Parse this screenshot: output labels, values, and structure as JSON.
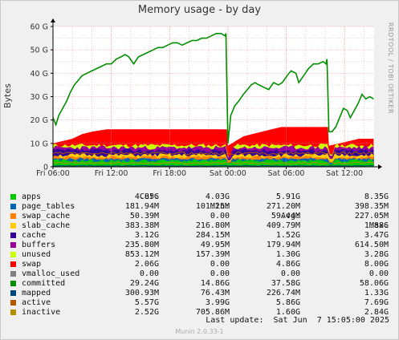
{
  "chart_data": {
    "type": "area",
    "title": "Memory usage - by day",
    "ylabel": "Bytes",
    "side_label": "RRDTOOL / TOBI OETIKER",
    "ylim": [
      0,
      60
    ],
    "y_unit": "G",
    "yticks": [
      "0",
      "10 G",
      "20 G",
      "30 G",
      "40 G",
      "50 G",
      "60 G"
    ],
    "x_ticks": [
      {
        "label": "Fri 06:00",
        "h": 6
      },
      {
        "label": "Fri 12:00",
        "h": 12
      },
      {
        "label": "Fri 18:00",
        "h": 18
      },
      {
        "label": "Sat 00:00",
        "h": 24
      },
      {
        "label": "Sat 06:00",
        "h": 30
      },
      {
        "label": "Sat 12:00",
        "h": 36
      }
    ],
    "x_range_hours": [
      6,
      39.05
    ],
    "committed_series": [
      [
        6.0,
        21
      ],
      [
        6.3,
        18
      ],
      [
        6.6,
        22
      ],
      [
        7.0,
        25
      ],
      [
        7.4,
        28
      ],
      [
        7.8,
        32
      ],
      [
        8.2,
        35
      ],
      [
        8.6,
        37
      ],
      [
        9.0,
        39
      ],
      [
        9.5,
        40
      ],
      [
        10.0,
        41
      ],
      [
        10.5,
        42
      ],
      [
        11.0,
        43
      ],
      [
        11.5,
        44
      ],
      [
        12.0,
        44
      ],
      [
        12.5,
        46
      ],
      [
        13.0,
        47
      ],
      [
        13.4,
        48
      ],
      [
        13.8,
        47
      ],
      [
        14.3,
        44
      ],
      [
        14.8,
        47
      ],
      [
        15.3,
        48
      ],
      [
        15.8,
        49
      ],
      [
        16.3,
        50
      ],
      [
        16.8,
        51
      ],
      [
        17.3,
        51
      ],
      [
        17.8,
        52
      ],
      [
        18.3,
        53
      ],
      [
        18.8,
        53
      ],
      [
        19.3,
        52
      ],
      [
        19.8,
        53
      ],
      [
        20.3,
        54
      ],
      [
        20.8,
        54
      ],
      [
        21.3,
        55
      ],
      [
        21.8,
        55
      ],
      [
        22.3,
        56
      ],
      [
        22.8,
        57
      ],
      [
        23.3,
        57
      ],
      [
        23.7,
        56
      ],
      [
        23.8,
        57
      ],
      [
        24.0,
        10
      ],
      [
        24.3,
        22
      ],
      [
        24.7,
        26
      ],
      [
        25.1,
        28
      ],
      [
        25.6,
        31
      ],
      [
        26.0,
        33
      ],
      [
        26.4,
        35
      ],
      [
        26.8,
        36
      ],
      [
        27.2,
        35
      ],
      [
        27.7,
        34
      ],
      [
        28.2,
        33
      ],
      [
        28.7,
        36
      ],
      [
        29.2,
        35
      ],
      [
        29.6,
        36
      ],
      [
        30.1,
        39
      ],
      [
        30.5,
        41
      ],
      [
        31.0,
        40
      ],
      [
        31.3,
        36
      ],
      [
        31.8,
        39
      ],
      [
        32.3,
        42
      ],
      [
        32.8,
        44
      ],
      [
        33.3,
        44
      ],
      [
        33.8,
        45
      ],
      [
        34.1,
        44
      ],
      [
        34.2,
        46
      ],
      [
        34.4,
        15
      ],
      [
        34.7,
        15
      ],
      [
        35.1,
        17
      ],
      [
        35.5,
        21
      ],
      [
        35.9,
        25
      ],
      [
        36.3,
        24
      ],
      [
        36.6,
        21
      ],
      [
        37.0,
        24
      ],
      [
        37.4,
        27
      ],
      [
        37.8,
        31
      ],
      [
        38.2,
        29
      ],
      [
        38.6,
        30
      ],
      [
        39.0,
        29
      ]
    ],
    "swap_series": [
      [
        6.0,
        10
      ],
      [
        7.0,
        11
      ],
      [
        8.0,
        12
      ],
      [
        9.0,
        14
      ],
      [
        10.0,
        15
      ],
      [
        11.5,
        16
      ],
      [
        13.0,
        16
      ],
      [
        16.0,
        16
      ],
      [
        20.0,
        16
      ],
      [
        22.0,
        16
      ],
      [
        23.9,
        16
      ],
      [
        24.0,
        9
      ],
      [
        24.8,
        11
      ],
      [
        25.6,
        13
      ],
      [
        26.5,
        14
      ],
      [
        27.5,
        15
      ],
      [
        28.5,
        16
      ],
      [
        29.5,
        17
      ],
      [
        31.0,
        17
      ],
      [
        33.0,
        17
      ],
      [
        34.3,
        17
      ],
      [
        34.4,
        9
      ],
      [
        35.5,
        10
      ],
      [
        36.5,
        11
      ],
      [
        37.5,
        12
      ],
      [
        39.0,
        12
      ]
    ],
    "series": [
      {
        "name": "apps",
        "cur": "4.85G",
        "min": "4.03G",
        "avg": "5.91G",
        "max": "8.35G",
        "color": "#00cc00"
      },
      {
        "name": "page_tables",
        "cur": "181.94M",
        "min": "101.25M",
        "avg": "271.20M",
        "max": "398.35M",
        "color": "#0066b3"
      },
      {
        "name": "swap_cache",
        "cur": "50.39M",
        "min": "0.00",
        "avg": "59.44M",
        "max": "227.05M",
        "color": "#ff8000"
      },
      {
        "name": "slab_cache",
        "cur": "383.38M",
        "min": "216.80M",
        "avg": "409.79M",
        "max": "1.88G",
        "color": "#ffcc00"
      },
      {
        "name": "cache",
        "cur": "3.12G",
        "min": "284.15M",
        "avg": "1.52G",
        "max": "3.47G",
        "color": "#330099"
      },
      {
        "name": "buffers",
        "cur": "235.80M",
        "min": "49.95M",
        "avg": "179.94M",
        "max": "614.50M",
        "color": "#990099"
      },
      {
        "name": "unused",
        "cur": "853.12M",
        "min": "157.39M",
        "avg": "1.30G",
        "max": "3.28G",
        "color": "#ccff00"
      },
      {
        "name": "swap",
        "cur": "2.06G",
        "min": "0.00",
        "avg": "4.86G",
        "max": "8.00G",
        "color": "#ff0000"
      },
      {
        "name": "vmalloc_used",
        "cur": "0.00",
        "min": "0.00",
        "avg": "0.00",
        "max": "0.00",
        "color": "#808080"
      },
      {
        "name": "committed",
        "cur": "29.24G",
        "min": "14.86G",
        "avg": "37.58G",
        "max": "58.06G",
        "color": "#008f00"
      },
      {
        "name": "mapped",
        "cur": "300.93M",
        "min": "76.43M",
        "avg": "226.74M",
        "max": "1.33G",
        "color": "#00487d"
      },
      {
        "name": "active",
        "cur": "5.57G",
        "min": "3.99G",
        "avg": "5.86G",
        "max": "7.69G",
        "color": "#b35a00"
      },
      {
        "name": "inactive",
        "cur": "2.52G",
        "min": "705.86M",
        "avg": "1.60G",
        "max": "2.84G",
        "color": "#b38f00"
      }
    ],
    "grid": true
  },
  "legend_headers": {
    "cur": "Cur:",
    "min": "Min:",
    "avg": "Avg:",
    "max": "Max:"
  },
  "footer": {
    "last_update": "Last update:  Sat Jun  7 15:05:00 2025",
    "version": "Munin 2.0.33-1"
  }
}
